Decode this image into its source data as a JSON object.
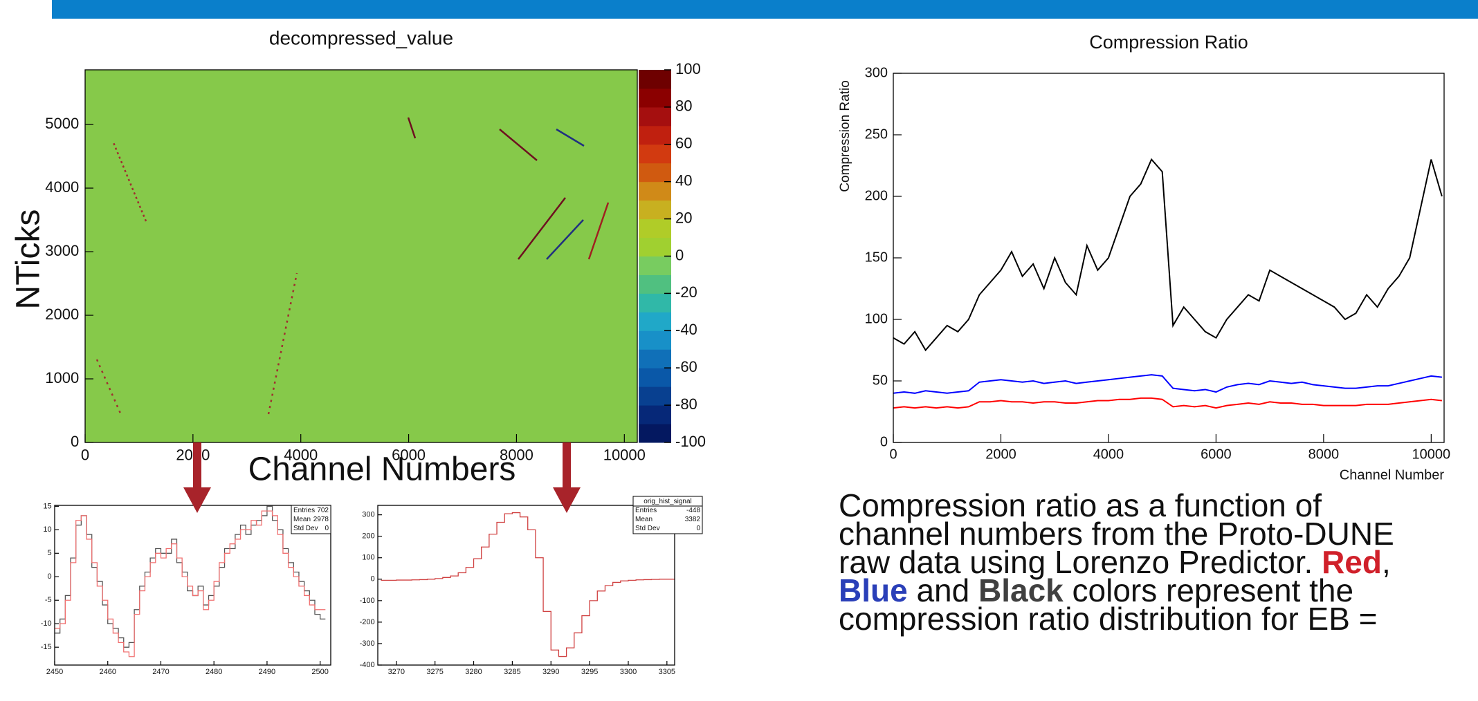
{
  "chart_data": [
    {
      "type": "heatmap",
      "title": "decompressed_value",
      "x_label": "Channel Numbers",
      "y_label": "NTicks",
      "xlim": [
        0,
        10240
      ],
      "ylim": [
        0,
        5860
      ],
      "xticks": [
        0,
        2000,
        4000,
        6000,
        8000,
        10000
      ],
      "yticks": [
        0,
        1000,
        2000,
        3000,
        4000,
        5000
      ],
      "background_color": "#86c94a",
      "zlim": [
        -100,
        100
      ],
      "zticks": [
        -100,
        -80,
        -60,
        -40,
        -20,
        0,
        20,
        40,
        60,
        80,
        100
      ],
      "zcolors": [
        "#041860",
        "#062878",
        "#084090",
        "#0a58a8",
        "#1070b8",
        "#1890c8",
        "#20a8c8",
        "#30b8a8",
        "#50c080",
        "#78cc60",
        "#a0d030",
        "#b0cc28",
        "#c8b020",
        "#d08a18",
        "#d05a10",
        "#d23a10",
        "#c0200f",
        "#a50f0f",
        "#8b0000",
        "#6e0000"
      ]
    },
    {
      "type": "line",
      "title": "Compression Ratio",
      "x_label": "Channel Number",
      "y_label": "Compression Ratio",
      "xlim": [
        0,
        10240
      ],
      "ylim": [
        0,
        300
      ],
      "xticks": [
        0,
        2000,
        4000,
        6000,
        8000,
        10000
      ],
      "yticks": [
        0,
        50,
        100,
        150,
        200,
        250,
        300
      ],
      "x": [
        0,
        200,
        400,
        600,
        800,
        1000,
        1200,
        1400,
        1600,
        1800,
        2000,
        2200,
        2400,
        2600,
        2800,
        3000,
        3200,
        3400,
        3600,
        3800,
        4000,
        4200,
        4400,
        4600,
        4800,
        5000,
        5200,
        5400,
        5600,
        5800,
        6000,
        6200,
        6400,
        6600,
        6800,
        7000,
        7200,
        7400,
        7600,
        7800,
        8000,
        8200,
        8400,
        8600,
        8800,
        9000,
        9200,
        9400,
        9600,
        9800,
        10000,
        10200
      ],
      "series": [
        {
          "color": "#000000",
          "values": [
            85,
            80,
            90,
            75,
            85,
            95,
            90,
            100,
            120,
            130,
            140,
            155,
            135,
            145,
            125,
            150,
            130,
            120,
            160,
            140,
            150,
            175,
            200,
            210,
            230,
            220,
            95,
            110,
            100,
            90,
            85,
            100,
            110,
            120,
            115,
            140,
            135,
            130,
            125,
            120,
            115,
            110,
            100,
            105,
            120,
            110,
            125,
            135,
            150,
            190,
            230,
            200
          ]
        },
        {
          "color": "#0000ff",
          "values": [
            40,
            41,
            40,
            42,
            41,
            40,
            41,
            42,
            49,
            50,
            51,
            50,
            49,
            50,
            48,
            49,
            50,
            48,
            49,
            50,
            51,
            52,
            53,
            54,
            55,
            54,
            44,
            43,
            42,
            43,
            41,
            45,
            47,
            48,
            47,
            50,
            49,
            48,
            49,
            47,
            46,
            45,
            44,
            44,
            45,
            46,
            46,
            48,
            50,
            52,
            54,
            53
          ]
        },
        {
          "color": "#ff0000",
          "values": [
            28,
            29,
            28,
            29,
            28,
            29,
            28,
            29,
            33,
            33,
            34,
            33,
            33,
            32,
            33,
            33,
            32,
            32,
            33,
            34,
            34,
            35,
            35,
            36,
            36,
            35,
            29,
            30,
            29,
            30,
            28,
            30,
            31,
            32,
            31,
            33,
            32,
            32,
            31,
            31,
            30,
            30,
            30,
            30,
            31,
            31,
            31,
            32,
            33,
            34,
            35,
            34
          ]
        }
      ]
    },
    {
      "type": "step",
      "xlim": [
        2450,
        2502
      ],
      "ylim": [
        -18.8,
        15.2
      ],
      "xticks": [
        2450,
        2460,
        2470,
        2480,
        2490,
        2500
      ],
      "yticks": [
        -15,
        -10,
        -5,
        0,
        5,
        10,
        15
      ],
      "x": [
        2450,
        2451,
        2452,
        2453,
        2454,
        2455,
        2456,
        2457,
        2458,
        2459,
        2460,
        2461,
        2462,
        2463,
        2464,
        2465,
        2466,
        2467,
        2468,
        2469,
        2470,
        2471,
        2472,
        2473,
        2474,
        2475,
        2476,
        2477,
        2478,
        2479,
        2480,
        2481,
        2482,
        2483,
        2484,
        2485,
        2486,
        2487,
        2488,
        2489,
        2490,
        2491,
        2492,
        2493,
        2494,
        2495,
        2496,
        2497,
        2498,
        2499,
        2500
      ],
      "series": [
        {
          "color": "#555555",
          "values": [
            -12,
            -9,
            -4,
            4,
            11,
            13,
            9,
            2,
            -1,
            -6,
            -10,
            -11,
            -13,
            -15,
            -14,
            -7,
            -2,
            1,
            4,
            6,
            5,
            5,
            8,
            3,
            1,
            -3,
            -4,
            -2,
            -6,
            -4,
            -2,
            2,
            6,
            6,
            9,
            11,
            9,
            11,
            12,
            13,
            15,
            12,
            10,
            6,
            3,
            1,
            -1,
            -3,
            -5,
            -8,
            -9
          ]
        },
        {
          "color": "#f07070",
          "values": [
            -11,
            -10,
            -5,
            3,
            12,
            13,
            8,
            3,
            -2,
            -5,
            -9,
            -12,
            -14,
            -16,
            -17,
            -8,
            -3,
            0,
            3,
            5,
            4,
            6,
            7,
            4,
            0,
            -2,
            -4,
            -3,
            -7,
            -5,
            -1,
            3,
            5,
            7,
            8,
            10,
            10,
            12,
            11,
            14,
            14,
            13,
            9,
            5,
            2,
            0,
            -2,
            -4,
            -6,
            -7,
            -7
          ]
        }
      ],
      "stats": {
        "rows": [
          {
            "label": "Entries",
            "value": 702
          },
          {
            "label": "Mean",
            "value": 2978
          },
          {
            "label": "Std Dev",
            "value": 0
          }
        ]
      }
    },
    {
      "type": "step",
      "xlim": [
        3267.6,
        3306
      ],
      "ylim": [
        -400,
        344
      ],
      "xticks": [
        3270,
        3275,
        3280,
        3285,
        3290,
        3295,
        3300,
        3305
      ],
      "yticks": [
        -400,
        -300,
        -200,
        -100,
        0,
        100,
        200,
        300
      ],
      "x": [
        3268,
        3269,
        3270,
        3271,
        3272,
        3273,
        3274,
        3275,
        3276,
        3277,
        3278,
        3279,
        3280,
        3281,
        3282,
        3283,
        3284,
        3285,
        3286,
        3287,
        3288,
        3289,
        3290,
        3291,
        3292,
        3293,
        3294,
        3295,
        3296,
        3297,
        3298,
        3299,
        3300,
        3301,
        3302,
        3303,
        3304,
        3305
      ],
      "series": [
        {
          "color": "#d04040",
          "values": [
            -5,
            -5,
            -4,
            -4,
            -3,
            -2,
            0,
            3,
            8,
            15,
            30,
            55,
            95,
            150,
            210,
            265,
            305,
            310,
            290,
            230,
            100,
            -150,
            -330,
            -360,
            -320,
            -250,
            -170,
            -100,
            -55,
            -30,
            -15,
            -8,
            -5,
            -3,
            -2,
            -1,
            0,
            0
          ]
        }
      ],
      "stats": {
        "title": "orig_hist_signal",
        "rows": [
          {
            "label": "Entries",
            "value": -448
          },
          {
            "label": "Mean",
            "value": 3382
          },
          {
            "label": "Std Dev",
            "value": 0
          }
        ]
      }
    }
  ],
  "caption": [
    [
      {
        "text": "Compression ratio as a function of"
      }
    ],
    [
      {
        "text": "channel numbers from the Proto-DUNE"
      }
    ],
    [
      {
        "text": "raw data using Lorenzo Predictor. "
      },
      {
        "text": "Red",
        "bold": true,
        "color": "#d0202a"
      },
      {
        "text": ","
      }
    ],
    [
      {
        "text": "Blue",
        "bold": true,
        "color": "#2a3fb8"
      },
      {
        "text": " and "
      },
      {
        "text": "Black",
        "bold": true,
        "color": "#404040"
      },
      {
        "text": " colors represent the"
      }
    ],
    [
      {
        "text": "compression ratio distribution for EB ="
      }
    ]
  ]
}
